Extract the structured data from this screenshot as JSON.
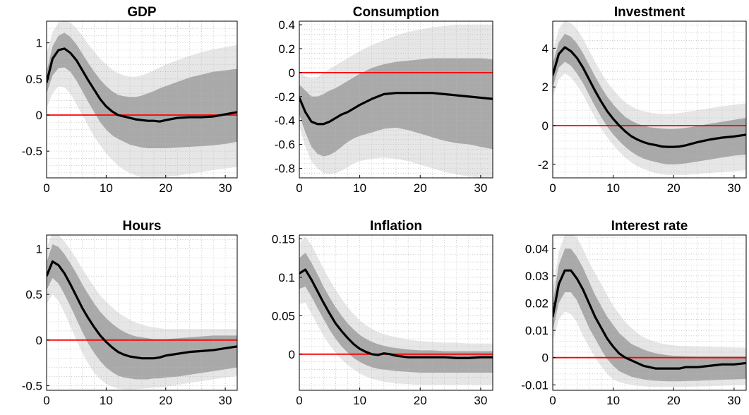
{
  "colors": {
    "outer_band": "#e6e6e6",
    "inner_band": "#a9a9a9",
    "median": "#000000",
    "zero_line": "#ff0000",
    "grid": "#b8b8b8"
  },
  "chart_data": [
    {
      "type": "area",
      "title": "GDP",
      "xlim": [
        0,
        32
      ],
      "ylim": [
        -0.87,
        1.3
      ],
      "xticks": [
        0,
        10,
        20,
        30
      ],
      "yticks": [
        -0.5,
        0,
        0.5,
        1
      ],
      "xtick_labels": [
        "0",
        "10",
        "20",
        "30"
      ],
      "ytick_labels": [
        "-0.5",
        "0",
        "0.5",
        "1"
      ],
      "grid": true,
      "zero_line": 0,
      "x": [
        0,
        1,
        2,
        3,
        4,
        5,
        6,
        7,
        8,
        9,
        10,
        11,
        12,
        13,
        14,
        15,
        16,
        17,
        18,
        19,
        20,
        22,
        24,
        26,
        28,
        30,
        32
      ],
      "median": [
        0.45,
        0.78,
        0.9,
        0.92,
        0.86,
        0.76,
        0.62,
        0.48,
        0.35,
        0.22,
        0.12,
        0.05,
        0.0,
        -0.02,
        -0.04,
        -0.06,
        -0.07,
        -0.08,
        -0.08,
        -0.09,
        -0.07,
        -0.04,
        -0.03,
        -0.03,
        -0.02,
        0.01,
        0.04
      ],
      "inner_lower": [
        0.3,
        0.55,
        0.65,
        0.66,
        0.6,
        0.48,
        0.33,
        0.18,
        0.04,
        -0.1,
        -0.2,
        -0.28,
        -0.33,
        -0.37,
        -0.41,
        -0.43,
        -0.45,
        -0.46,
        -0.46,
        -0.46,
        -0.46,
        -0.45,
        -0.44,
        -0.43,
        -0.42,
        -0.4,
        -0.37
      ],
      "inner_upper": [
        0.6,
        0.95,
        1.1,
        1.14,
        1.08,
        0.98,
        0.85,
        0.72,
        0.6,
        0.49,
        0.4,
        0.33,
        0.28,
        0.26,
        0.25,
        0.25,
        0.27,
        0.3,
        0.33,
        0.37,
        0.4,
        0.46,
        0.52,
        0.56,
        0.6,
        0.62,
        0.64
      ],
      "outer_lower": [
        0.1,
        0.3,
        0.4,
        0.38,
        0.3,
        0.15,
        0.0,
        -0.15,
        -0.3,
        -0.42,
        -0.53,
        -0.62,
        -0.7,
        -0.76,
        -0.8,
        -0.84,
        -0.87,
        -0.88,
        -0.88,
        -0.87,
        -0.86,
        -0.84,
        -0.81,
        -0.79,
        -0.76,
        -0.74,
        -0.72
      ],
      "outer_upper": [
        0.85,
        1.15,
        1.28,
        1.32,
        1.28,
        1.2,
        1.1,
        0.98,
        0.88,
        0.78,
        0.7,
        0.63,
        0.58,
        0.55,
        0.53,
        0.53,
        0.55,
        0.58,
        0.62,
        0.66,
        0.7,
        0.76,
        0.82,
        0.87,
        0.91,
        0.94,
        0.97
      ]
    },
    {
      "type": "area",
      "title": "Consumption",
      "xlim": [
        0,
        32
      ],
      "ylim": [
        -0.88,
        0.43
      ],
      "xticks": [
        0,
        10,
        20,
        30
      ],
      "yticks": [
        -0.8,
        -0.6,
        -0.4,
        -0.2,
        0,
        0.2,
        0.4
      ],
      "xtick_labels": [
        "0",
        "10",
        "20",
        "30"
      ],
      "ytick_labels": [
        "-0.8",
        "-0.6",
        "-0.4",
        "-0.2",
        "0",
        "0.2",
        "0.4"
      ],
      "grid": true,
      "zero_line": 0,
      "x": [
        0,
        1,
        2,
        3,
        4,
        5,
        6,
        7,
        8,
        9,
        10,
        12,
        14,
        16,
        18,
        20,
        22,
        24,
        26,
        28,
        30,
        32
      ],
      "median": [
        -0.21,
        -0.33,
        -0.41,
        -0.43,
        -0.43,
        -0.41,
        -0.38,
        -0.35,
        -0.33,
        -0.3,
        -0.27,
        -0.22,
        -0.18,
        -0.17,
        -0.17,
        -0.17,
        -0.17,
        -0.18,
        -0.19,
        -0.2,
        -0.21,
        -0.22
      ],
      "inner_lower": [
        -0.35,
        -0.5,
        -0.62,
        -0.68,
        -0.7,
        -0.69,
        -0.66,
        -0.62,
        -0.58,
        -0.55,
        -0.53,
        -0.5,
        -0.47,
        -0.46,
        -0.48,
        -0.51,
        -0.54,
        -0.57,
        -0.59,
        -0.6,
        -0.62,
        -0.64
      ],
      "inner_upper": [
        -0.1,
        -0.15,
        -0.2,
        -0.2,
        -0.18,
        -0.15,
        -0.13,
        -0.1,
        -0.07,
        -0.04,
        -0.01,
        0.04,
        0.07,
        0.09,
        0.1,
        0.11,
        0.12,
        0.12,
        0.12,
        0.12,
        0.12,
        0.11
      ],
      "outer_lower": [
        -0.45,
        -0.62,
        -0.74,
        -0.8,
        -0.84,
        -0.85,
        -0.84,
        -0.82,
        -0.79,
        -0.76,
        -0.74,
        -0.72,
        -0.71,
        -0.72,
        -0.74,
        -0.77,
        -0.8,
        -0.83,
        -0.85,
        -0.87,
        -0.88,
        -0.88
      ],
      "outer_upper": [
        0.0,
        -0.03,
        -0.05,
        -0.04,
        0.0,
        0.03,
        0.06,
        0.09,
        0.12,
        0.15,
        0.18,
        0.23,
        0.27,
        0.31,
        0.34,
        0.36,
        0.38,
        0.39,
        0.4,
        0.4,
        0.4,
        0.4
      ]
    },
    {
      "type": "area",
      "title": "Investment",
      "xlim": [
        0,
        32
      ],
      "ylim": [
        -2.7,
        5.4
      ],
      "xticks": [
        0,
        10,
        20,
        30
      ],
      "yticks": [
        -2,
        0,
        2,
        4
      ],
      "xtick_labels": [
        "0",
        "10",
        "20",
        "30"
      ],
      "ytick_labels": [
        "-2",
        "0",
        "2",
        "4"
      ],
      "grid": true,
      "zero_line": 0,
      "x": [
        0,
        1,
        2,
        3,
        4,
        5,
        6,
        7,
        8,
        9,
        10,
        11,
        12,
        13,
        14,
        15,
        16,
        17,
        18,
        19,
        20,
        21,
        22,
        24,
        26,
        28,
        30,
        32
      ],
      "median": [
        2.6,
        3.7,
        4.05,
        3.85,
        3.5,
        3.0,
        2.4,
        1.8,
        1.25,
        0.75,
        0.35,
        0.0,
        -0.3,
        -0.55,
        -0.72,
        -0.85,
        -0.95,
        -1.0,
        -1.08,
        -1.1,
        -1.1,
        -1.08,
        -1.02,
        -0.85,
        -0.72,
        -0.62,
        -0.56,
        -0.47
      ],
      "inner_lower": [
        2.0,
        3.0,
        3.3,
        3.1,
        2.7,
        2.2,
        1.6,
        1.0,
        0.45,
        -0.05,
        -0.45,
        -0.8,
        -1.1,
        -1.35,
        -1.55,
        -1.7,
        -1.8,
        -1.88,
        -1.95,
        -2.0,
        -2.0,
        -1.98,
        -1.95,
        -1.85,
        -1.75,
        -1.65,
        -1.55,
        -1.5
      ],
      "inner_upper": [
        3.2,
        4.3,
        4.75,
        4.6,
        4.25,
        3.75,
        3.15,
        2.55,
        2.0,
        1.5,
        1.1,
        0.75,
        0.45,
        0.25,
        0.1,
        0.0,
        -0.08,
        -0.12,
        -0.15,
        -0.17,
        -0.17,
        -0.15,
        -0.12,
        -0.02,
        0.1,
        0.2,
        0.3,
        0.4
      ],
      "outer_lower": [
        1.5,
        2.4,
        2.7,
        2.5,
        2.1,
        1.6,
        1.0,
        0.4,
        -0.15,
        -0.6,
        -1.0,
        -1.35,
        -1.65,
        -1.9,
        -2.1,
        -2.25,
        -2.35,
        -2.45,
        -2.5,
        -2.55,
        -2.55,
        -2.55,
        -2.55,
        -2.5,
        -2.45,
        -2.4,
        -2.35,
        -2.3
      ],
      "outer_upper": [
        3.8,
        5.0,
        5.45,
        5.3,
        5.0,
        4.5,
        3.9,
        3.3,
        2.75,
        2.25,
        1.85,
        1.5,
        1.2,
        1.0,
        0.85,
        0.75,
        0.68,
        0.63,
        0.6,
        0.6,
        0.62,
        0.65,
        0.7,
        0.8,
        0.9,
        1.0,
        1.08,
        1.15
      ]
    },
    {
      "type": "area",
      "title": "Hours",
      "xlim": [
        0,
        32
      ],
      "ylim": [
        -0.55,
        1.15
      ],
      "xticks": [
        0,
        10,
        20,
        30
      ],
      "yticks": [
        -0.5,
        0,
        0.5,
        1
      ],
      "xtick_labels": [
        "0",
        "10",
        "20",
        "30"
      ],
      "ytick_labels": [
        "-0.5",
        "0",
        "0.5",
        "1"
      ],
      "grid": true,
      "zero_line": 0,
      "x": [
        0,
        1,
        2,
        3,
        4,
        5,
        6,
        7,
        8,
        9,
        10,
        11,
        12,
        13,
        14,
        15,
        16,
        17,
        18,
        19,
        20,
        22,
        24,
        26,
        28,
        30,
        32
      ],
      "median": [
        0.7,
        0.86,
        0.82,
        0.73,
        0.61,
        0.48,
        0.35,
        0.24,
        0.14,
        0.05,
        -0.02,
        -0.08,
        -0.13,
        -0.16,
        -0.18,
        -0.19,
        -0.2,
        -0.2,
        -0.2,
        -0.19,
        -0.17,
        -0.15,
        -0.13,
        -0.12,
        -0.11,
        -0.09,
        -0.07
      ],
      "inner_lower": [
        0.55,
        0.68,
        0.62,
        0.5,
        0.37,
        0.23,
        0.09,
        -0.04,
        -0.14,
        -0.23,
        -0.3,
        -0.35,
        -0.39,
        -0.41,
        -0.42,
        -0.43,
        -0.43,
        -0.43,
        -0.42,
        -0.42,
        -0.41,
        -0.4,
        -0.38,
        -0.36,
        -0.34,
        -0.32,
        -0.3
      ],
      "inner_upper": [
        0.85,
        1.05,
        1.02,
        0.94,
        0.84,
        0.73,
        0.61,
        0.5,
        0.4,
        0.31,
        0.24,
        0.18,
        0.13,
        0.09,
        0.06,
        0.04,
        0.03,
        0.02,
        0.01,
        0.01,
        0.01,
        0.02,
        0.03,
        0.04,
        0.05,
        0.05,
        0.05
      ],
      "outer_lower": [
        0.4,
        0.5,
        0.43,
        0.3,
        0.15,
        0.0,
        -0.14,
        -0.26,
        -0.36,
        -0.43,
        -0.48,
        -0.51,
        -0.53,
        -0.54,
        -0.54,
        -0.54,
        -0.53,
        -0.53,
        -0.52,
        -0.52,
        -0.51,
        -0.49,
        -0.47,
        -0.45,
        -0.43,
        -0.41,
        -0.39
      ],
      "outer_upper": [
        1.0,
        1.18,
        1.15,
        1.08,
        0.99,
        0.89,
        0.78,
        0.68,
        0.58,
        0.49,
        0.42,
        0.36,
        0.3,
        0.26,
        0.22,
        0.19,
        0.17,
        0.15,
        0.14,
        0.13,
        0.12,
        0.12,
        0.12,
        0.12,
        0.12,
        0.12,
        0.12
      ]
    },
    {
      "type": "area",
      "title": "Inflation",
      "xlim": [
        0,
        32
      ],
      "ylim": [
        -0.047,
        0.155
      ],
      "xticks": [
        0,
        10,
        20,
        30
      ],
      "yticks": [
        0,
        0.05,
        0.1,
        0.15
      ],
      "xtick_labels": [
        "0",
        "10",
        "20",
        "30"
      ],
      "ytick_labels": [
        "0",
        "0.05",
        "0.1",
        "0.15"
      ],
      "grid": true,
      "zero_line": 0,
      "x": [
        0,
        1,
        2,
        3,
        4,
        5,
        6,
        7,
        8,
        9,
        10,
        11,
        12,
        13,
        14,
        15,
        16,
        18,
        20,
        22,
        24,
        26,
        28,
        30,
        32
      ],
      "median": [
        0.105,
        0.11,
        0.097,
        0.082,
        0.067,
        0.053,
        0.04,
        0.03,
        0.021,
        0.013,
        0.007,
        0.003,
        0.0,
        -0.001,
        0.001,
        0.0,
        -0.002,
        -0.004,
        -0.004,
        -0.004,
        -0.004,
        -0.005,
        -0.005,
        -0.004,
        -0.004
      ],
      "inner_lower": [
        0.085,
        0.088,
        0.075,
        0.06,
        0.046,
        0.032,
        0.02,
        0.01,
        0.002,
        -0.005,
        -0.01,
        -0.014,
        -0.017,
        -0.019,
        -0.02,
        -0.021,
        -0.022,
        -0.023,
        -0.024,
        -0.024,
        -0.024,
        -0.024,
        -0.024,
        -0.024,
        -0.024
      ],
      "inner_upper": [
        0.125,
        0.132,
        0.119,
        0.104,
        0.088,
        0.074,
        0.061,
        0.05,
        0.04,
        0.032,
        0.025,
        0.02,
        0.016,
        0.013,
        0.011,
        0.009,
        0.008,
        0.006,
        0.005,
        0.005,
        0.004,
        0.004,
        0.004,
        0.004,
        0.004
      ],
      "outer_lower": [
        0.065,
        0.067,
        0.053,
        0.038,
        0.024,
        0.012,
        0.002,
        -0.007,
        -0.014,
        -0.02,
        -0.025,
        -0.029,
        -0.032,
        -0.034,
        -0.036,
        -0.037,
        -0.038,
        -0.039,
        -0.04,
        -0.04,
        -0.04,
        -0.04,
        -0.04,
        -0.04,
        -0.04
      ],
      "outer_upper": [
        0.145,
        0.153,
        0.142,
        0.127,
        0.111,
        0.097,
        0.084,
        0.072,
        0.061,
        0.052,
        0.044,
        0.038,
        0.033,
        0.029,
        0.026,
        0.024,
        0.022,
        0.019,
        0.017,
        0.016,
        0.015,
        0.015,
        0.014,
        0.014,
        0.014
      ]
    },
    {
      "type": "area",
      "title": "Interest rate",
      "xlim": [
        0,
        32
      ],
      "ylim": [
        -0.012,
        0.045
      ],
      "xticks": [
        0,
        10,
        20,
        30
      ],
      "yticks": [
        -0.01,
        0,
        0.01,
        0.02,
        0.03,
        0.04
      ],
      "xtick_labels": [
        "0",
        "10",
        "20",
        "30"
      ],
      "ytick_labels": [
        "-0.01",
        "0",
        "0.01",
        "0.02",
        "0.03",
        "0.04"
      ],
      "grid": true,
      "zero_line": 0,
      "x": [
        0,
        1,
        2,
        3,
        4,
        5,
        6,
        7,
        8,
        9,
        10,
        11,
        12,
        13,
        14,
        15,
        16,
        17,
        18,
        19,
        20,
        21,
        22,
        24,
        26,
        28,
        30,
        32
      ],
      "median": [
        0.015,
        0.027,
        0.032,
        0.032,
        0.029,
        0.025,
        0.02,
        0.015,
        0.011,
        0.007,
        0.004,
        0.0015,
        0.0,
        -0.001,
        -0.002,
        -0.003,
        -0.0035,
        -0.004,
        -0.004,
        -0.004,
        -0.004,
        -0.004,
        -0.0035,
        -0.0035,
        -0.003,
        -0.0025,
        -0.0025,
        -0.002
      ],
      "inner_lower": [
        0.01,
        0.02,
        0.024,
        0.024,
        0.021,
        0.016,
        0.011,
        0.007,
        0.003,
        -0.0005,
        -0.003,
        -0.005,
        -0.006,
        -0.007,
        -0.0075,
        -0.008,
        -0.0083,
        -0.0085,
        -0.0086,
        -0.0087,
        -0.0087,
        -0.0087,
        -0.0086,
        -0.0085,
        -0.0083,
        -0.0081,
        -0.008,
        -0.0078
      ],
      "inner_upper": [
        0.02,
        0.034,
        0.04,
        0.04,
        0.037,
        0.033,
        0.028,
        0.023,
        0.019,
        0.015,
        0.012,
        0.009,
        0.007,
        0.005,
        0.004,
        0.003,
        0.0022,
        0.0016,
        0.0012,
        0.0009,
        0.0007,
        0.0006,
        0.0005,
        0.0004,
        0.0004,
        0.0004,
        0.0004,
        0.0004
      ],
      "outer_lower": [
        0.006,
        0.014,
        0.017,
        0.016,
        0.013,
        0.008,
        0.004,
        0.0,
        -0.003,
        -0.006,
        -0.008,
        -0.009,
        -0.0095,
        -0.01,
        -0.0103,
        -0.0105,
        -0.0107,
        -0.0108,
        -0.0108,
        -0.0108,
        -0.0108,
        -0.0108,
        -0.0107,
        -0.0106,
        -0.0105,
        -0.0103,
        -0.0102,
        -0.01
      ],
      "outer_upper": [
        0.024,
        0.039,
        0.045,
        0.046,
        0.044,
        0.04,
        0.035,
        0.031,
        0.027,
        0.023,
        0.019,
        0.016,
        0.013,
        0.011,
        0.009,
        0.0075,
        0.0065,
        0.0058,
        0.0052,
        0.0048,
        0.0045,
        0.0043,
        0.0042,
        0.004,
        0.0039,
        0.0038,
        0.0037,
        0.0036
      ]
    }
  ]
}
